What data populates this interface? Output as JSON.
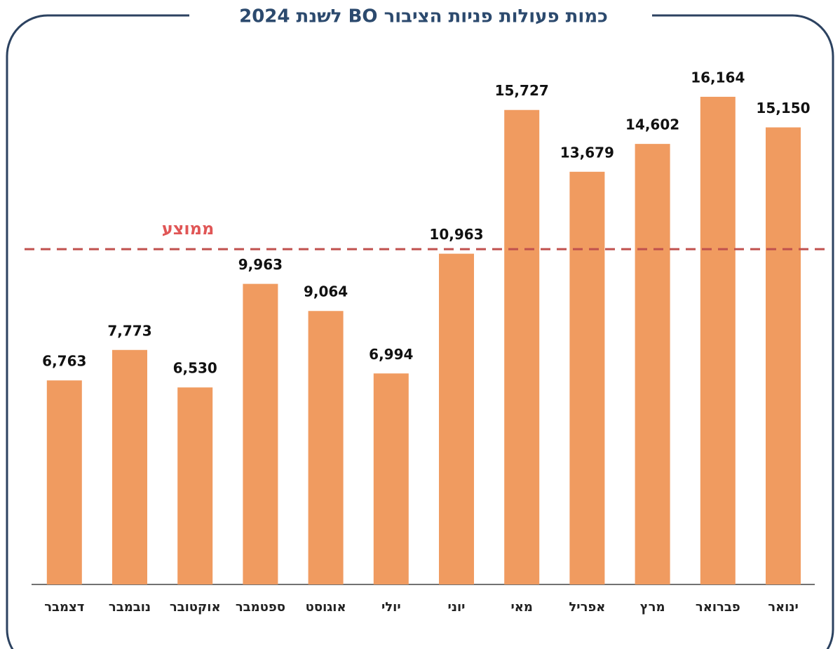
{
  "chart_data": {
    "type": "bar",
    "title": "כמות פעולות פניות הציבור BO לשנת 2024",
    "categories": [
      "ינואר",
      "פברואר",
      "מרץ",
      "אפריל",
      "מאי",
      "יוני",
      "יולי",
      "אוגוסט",
      "ספטמבר",
      "אוקטובר",
      "נובמבר",
      "דצמבר"
    ],
    "values": [
      15150,
      16164,
      14602,
      13679,
      15727,
      10963,
      6994,
      9064,
      9963,
      6530,
      7773,
      6763
    ],
    "value_labels": [
      "15,150",
      "16,164",
      "14,602",
      "13,679",
      "15,727",
      "10,963",
      "6,994",
      "9,064",
      "9,963",
      "6,530",
      "7,773",
      "6,763"
    ],
    "color": "#f09b60",
    "ylim": [
      0,
      17000
    ],
    "average": {
      "label": "ממוצע",
      "value": 11114,
      "color": "#c0504d"
    }
  }
}
